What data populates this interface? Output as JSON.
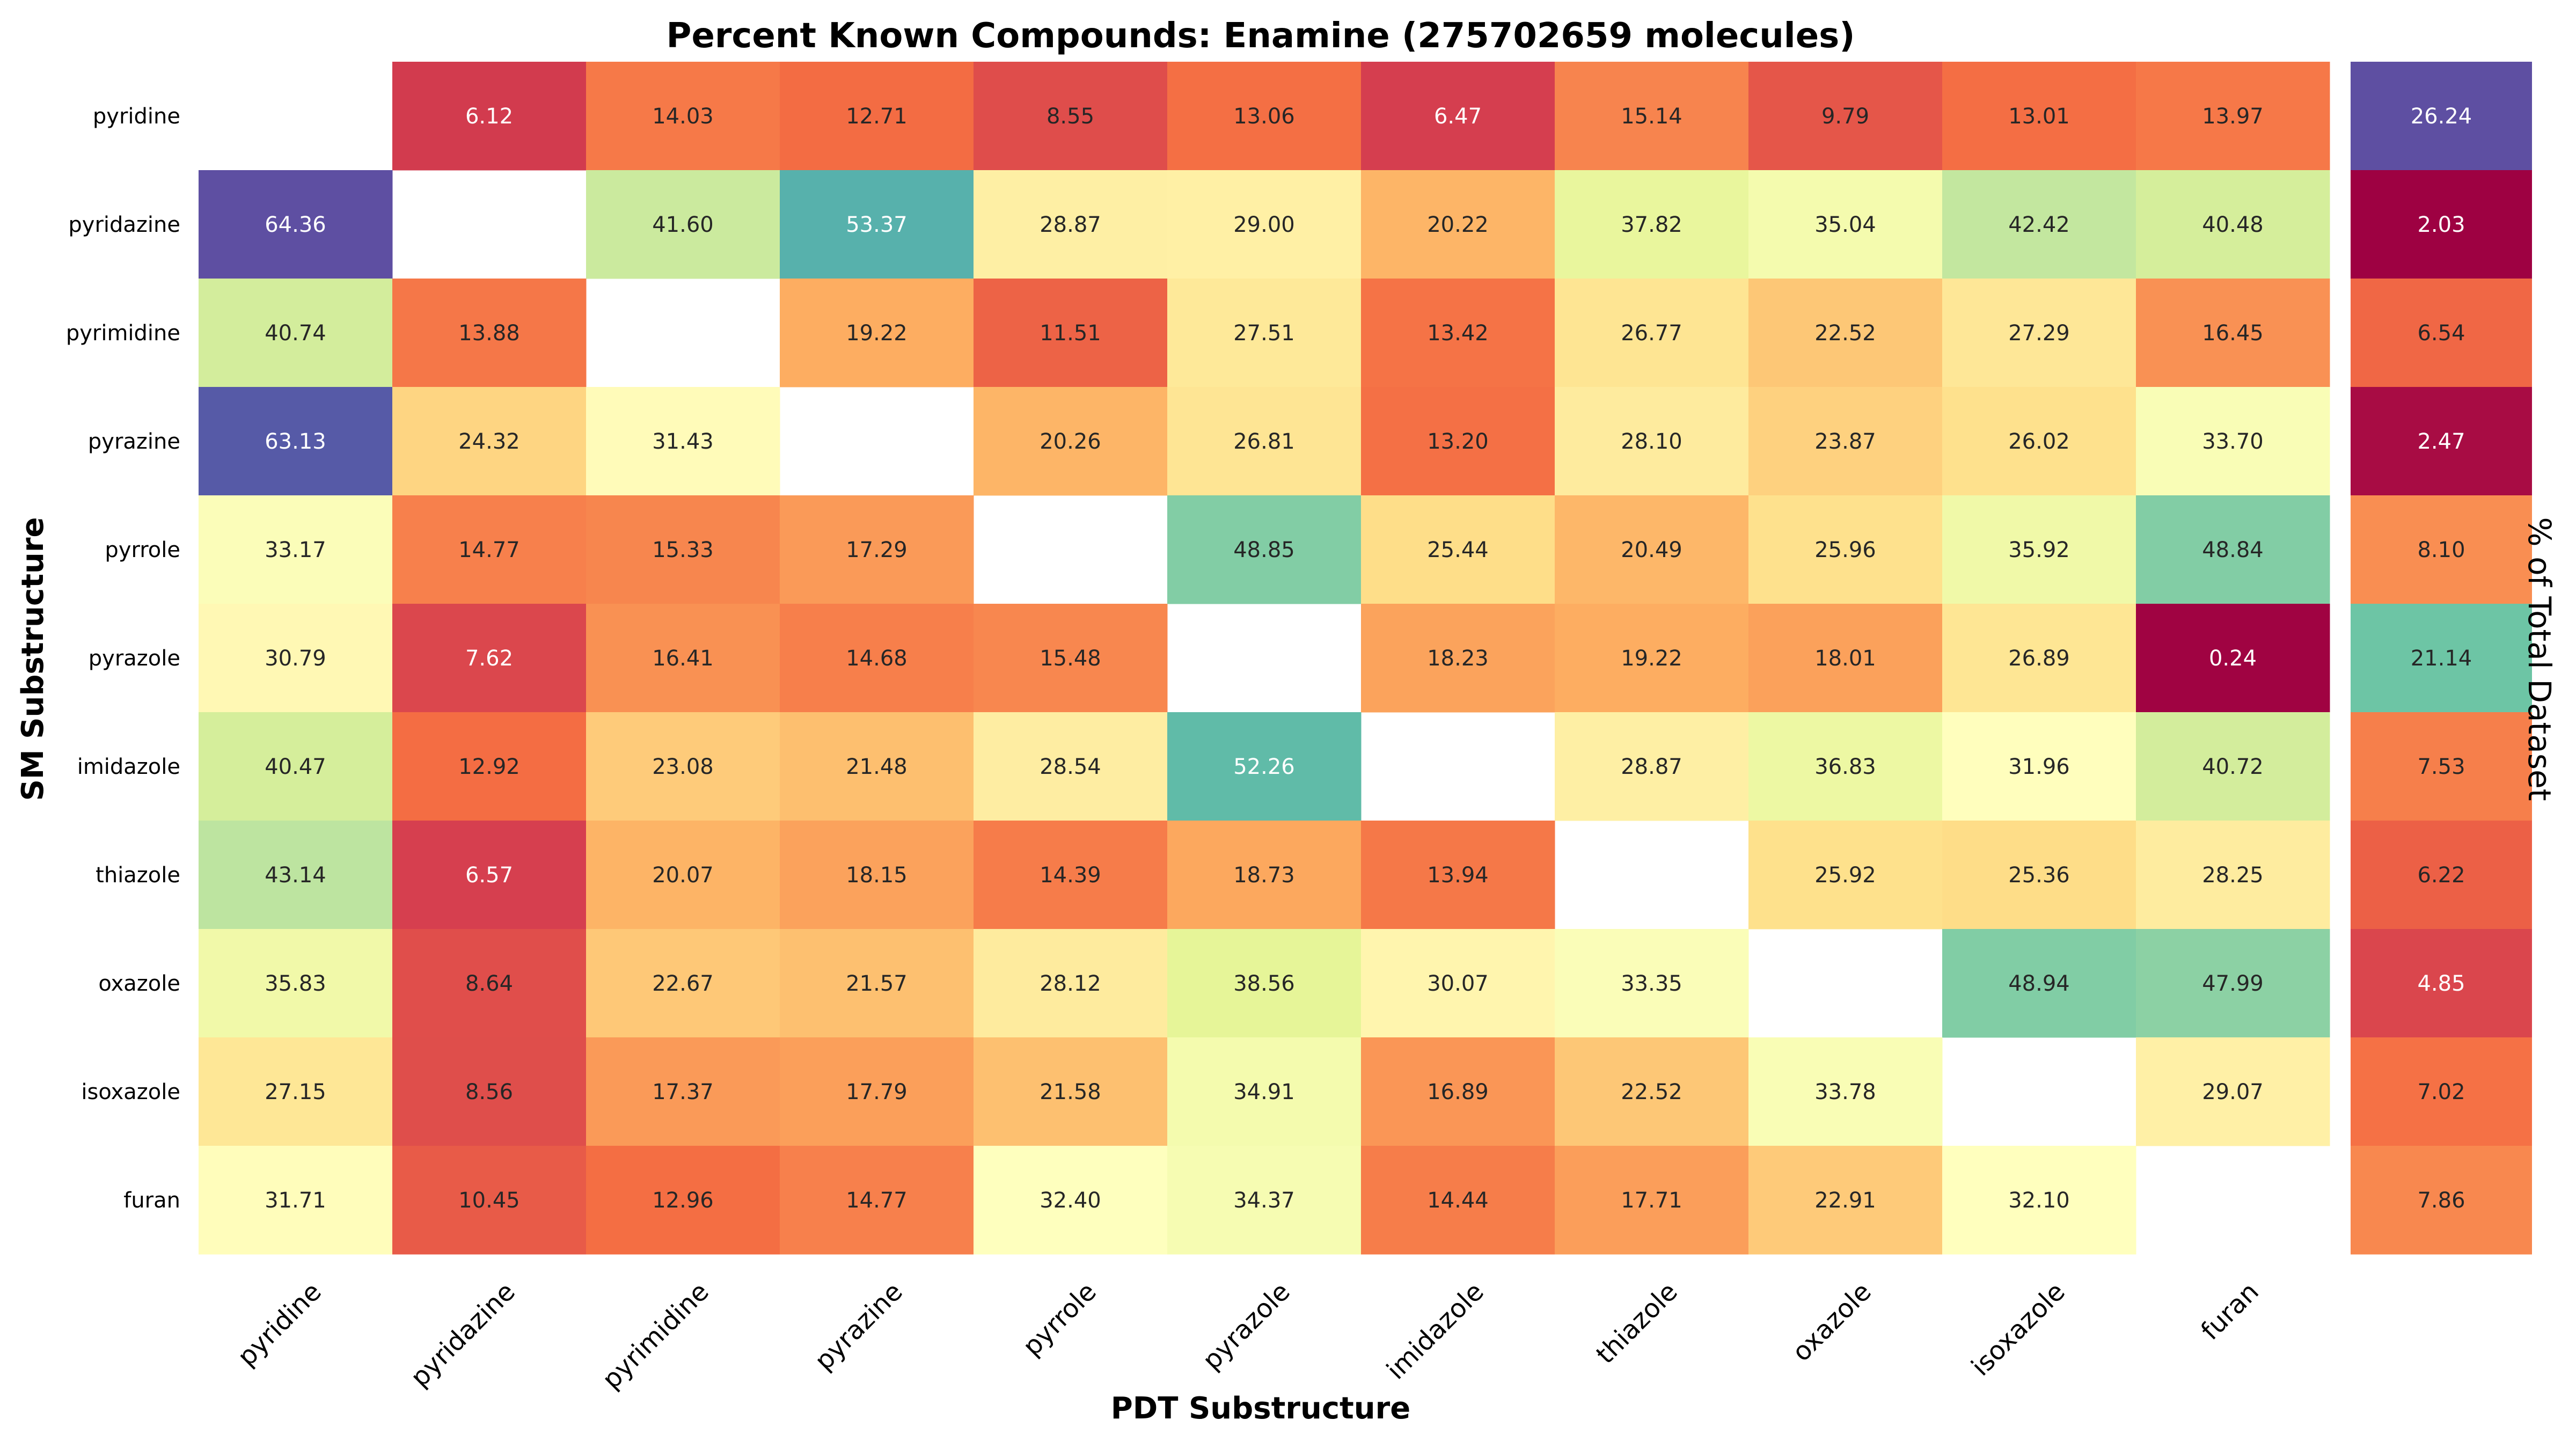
{
  "chart_data": {
    "type": "heatmap",
    "title": "Percent Known Compounds: Enamine (275702659 molecules)",
    "xlabel": "PDT Substructure",
    "ylabel": "SM Substructure",
    "side_label": "% of Total Dataset",
    "colormap": "Spectral",
    "color_range": [
      0,
      64.36
    ],
    "rows": [
      "pyridine",
      "pyridazine",
      "pyrimidine",
      "pyrazine",
      "pyrrole",
      "pyrazole",
      "imidazole",
      "thiazole",
      "oxazole",
      "isoxazole",
      "furan"
    ],
    "columns": [
      "pyridine",
      "pyridazine",
      "pyrimidine",
      "pyrazine",
      "pyrrole",
      "pyrazole",
      "imidazole",
      "thiazole",
      "oxazole",
      "isoxazole",
      "furan"
    ],
    "values": [
      [
        null,
        6.12,
        14.03,
        12.71,
        8.55,
        13.06,
        6.47,
        15.14,
        9.79,
        13.01,
        13.97
      ],
      [
        64.36,
        null,
        41.6,
        53.37,
        28.87,
        29.0,
        20.22,
        37.82,
        35.04,
        42.42,
        40.48
      ],
      [
        40.74,
        13.88,
        null,
        19.22,
        11.51,
        27.51,
        13.42,
        26.77,
        22.52,
        27.29,
        16.45
      ],
      [
        63.13,
        24.32,
        31.43,
        null,
        20.26,
        26.81,
        13.2,
        28.1,
        23.87,
        26.02,
        33.7
      ],
      [
        33.17,
        14.77,
        15.33,
        17.29,
        null,
        48.85,
        25.44,
        20.49,
        25.96,
        35.92,
        48.84
      ],
      [
        30.79,
        7.62,
        16.41,
        14.68,
        15.48,
        null,
        18.23,
        19.22,
        18.01,
        26.89,
        0.24
      ],
      [
        40.47,
        12.92,
        23.08,
        21.48,
        28.54,
        52.26,
        null,
        28.87,
        36.83,
        31.96,
        40.72
      ],
      [
        43.14,
        6.57,
        20.07,
        18.15,
        14.39,
        18.73,
        13.94,
        null,
        25.92,
        25.36,
        28.25
      ],
      [
        35.83,
        8.64,
        22.67,
        21.57,
        28.12,
        38.56,
        30.07,
        33.35,
        null,
        48.94,
        47.99
      ],
      [
        27.15,
        8.56,
        17.37,
        17.79,
        21.58,
        34.91,
        16.89,
        22.52,
        33.78,
        null,
        29.07
      ],
      [
        31.71,
        10.45,
        12.96,
        14.77,
        32.4,
        34.37,
        14.44,
        17.71,
        22.91,
        32.1,
        null
      ]
    ],
    "value_labels": [
      [
        "",
        "6.12",
        "14.03",
        "12.71",
        "8.55",
        "13.06",
        "6.47",
        "15.14",
        "9.79",
        "13.01",
        "13.97"
      ],
      [
        "64.36",
        "",
        "41.60",
        "53.37",
        "28.87",
        "29.00",
        "20.22",
        "37.82",
        "35.04",
        "42.42",
        "40.48"
      ],
      [
        "40.74",
        "13.88",
        "",
        "19.22",
        "11.51",
        "27.51",
        "13.42",
        "26.77",
        "22.52",
        "27.29",
        "16.45"
      ],
      [
        "63.13",
        "24.32",
        "31.43",
        "",
        "20.26",
        "26.81",
        "13.20",
        "28.10",
        "23.87",
        "26.02",
        "33.70"
      ],
      [
        "33.17",
        "14.77",
        "15.33",
        "17.29",
        "",
        "48.85",
        "25.44",
        "20.49",
        "25.96",
        "35.92",
        "48.84"
      ],
      [
        "30.79",
        "7.62",
        "16.41",
        "14.68",
        "15.48",
        "",
        "18.23",
        "19.22",
        "18.01",
        "26.89",
        "0.24"
      ],
      [
        "40.47",
        "12.92",
        "23.08",
        "21.48",
        "28.54",
        "52.26",
        "",
        "28.87",
        "36.83",
        "31.96",
        "40.72"
      ],
      [
        "43.14",
        "6.57",
        "20.07",
        "18.15",
        "14.39",
        "18.73",
        "13.94",
        "",
        "25.92",
        "25.36",
        "28.25"
      ],
      [
        "35.83",
        "8.64",
        "22.67",
        "21.57",
        "28.12",
        "38.56",
        "30.07",
        "33.35",
        "",
        "48.94",
        "47.99"
      ],
      [
        "27.15",
        "8.56",
        "17.37",
        "17.79",
        "21.58",
        "34.91",
        "16.89",
        "22.52",
        "33.78",
        "",
        "29.07"
      ],
      [
        "31.71",
        "10.45",
        "12.96",
        "14.77",
        "32.40",
        "34.37",
        "14.44",
        "17.71",
        "22.91",
        "32.10",
        ""
      ]
    ],
    "totals": {
      "values": [
        26.24,
        2.03,
        6.54,
        2.47,
        8.1,
        21.14,
        7.53,
        6.22,
        4.85,
        7.02,
        7.86
      ],
      "labels": [
        "26.24",
        "2.03",
        "6.54",
        "2.47",
        "8.10",
        "21.14",
        "7.53",
        "6.22",
        "4.85",
        "7.02",
        "7.86"
      ],
      "color_range": [
        2.03,
        26.24
      ]
    }
  }
}
